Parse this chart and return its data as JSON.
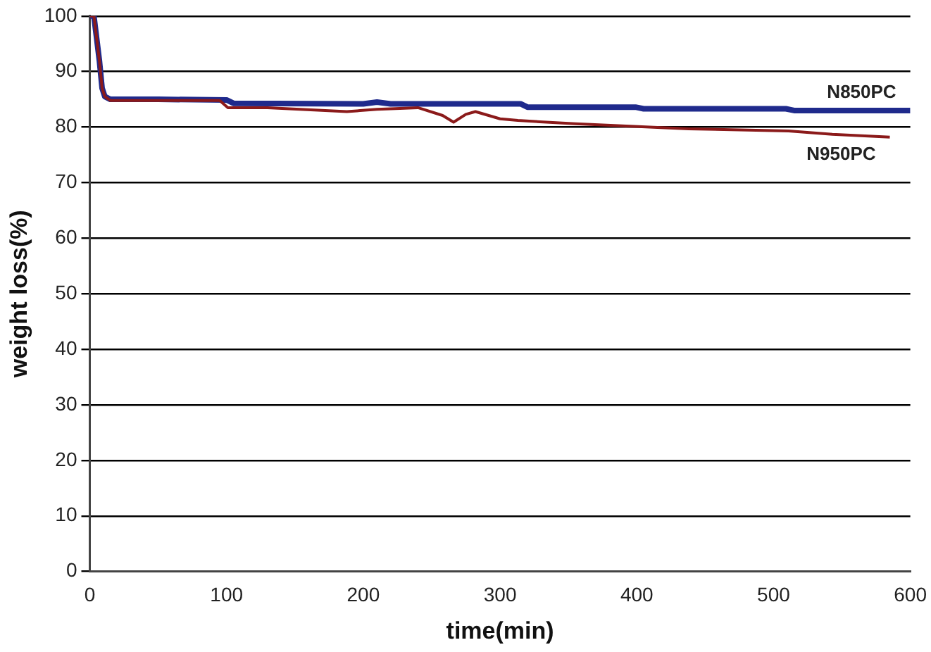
{
  "chart_data": {
    "type": "line",
    "xlabel": "time(min)",
    "ylabel": "weight loss(%)",
    "xlim": [
      0,
      600
    ],
    "xticks": [
      0,
      100,
      200,
      300,
      400,
      500,
      600
    ],
    "ylim": [
      0,
      100
    ],
    "yticks": [
      0,
      10,
      20,
      30,
      40,
      50,
      60,
      70,
      80,
      90,
      100
    ],
    "grid": "y",
    "legend": false,
    "marker": "none",
    "line_style": "solid",
    "series": [
      {
        "name": "N850PC",
        "color": "#1f2a8c",
        "x": [
          0,
          3,
          5,
          7,
          9,
          11,
          15,
          50,
          100,
          105,
          200,
          210,
          220,
          315,
          320,
          399,
          405,
          509,
          515,
          600
        ],
        "values": [
          100,
          100,
          96,
          92,
          87,
          85.5,
          85,
          85,
          84.9,
          84.3,
          84.2,
          84.5,
          84.2,
          84.2,
          83.6,
          83.6,
          83.3,
          83.3,
          83,
          83
        ]
      },
      {
        "name": "N950PC",
        "color": "#8b1a1a",
        "x": [
          0,
          3,
          5,
          7,
          9,
          11,
          15,
          50,
          95,
          101,
          130,
          188,
          210,
          240,
          258,
          266,
          275,
          282,
          300,
          313,
          355,
          438,
          511,
          543,
          585
        ],
        "values": [
          100,
          100,
          96,
          92,
          87,
          85.5,
          84.8,
          84.8,
          84.8,
          83.5,
          83.5,
          82.8,
          83.2,
          83.5,
          82.1,
          80.9,
          82.3,
          82.8,
          81.5,
          81.2,
          80.6,
          79.7,
          79.3,
          78.7,
          78.2
        ]
      }
    ]
  }
}
